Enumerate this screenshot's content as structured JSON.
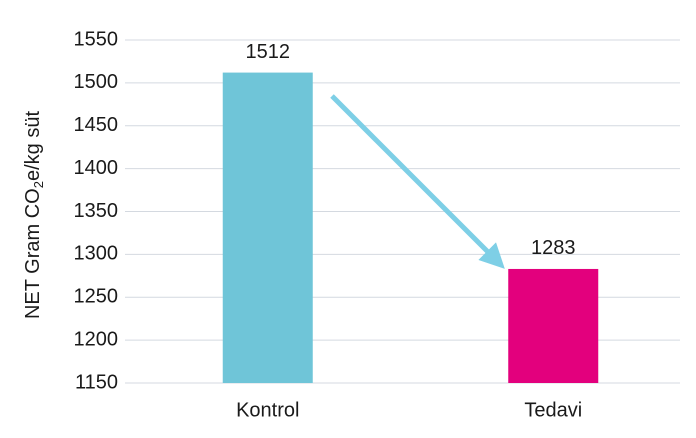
{
  "chart_data": {
    "type": "bar",
    "ylabel": [
      "NET Gram CO",
      "2",
      "e/kg süt"
    ],
    "categories": [
      "Kontrol",
      "Tedavi"
    ],
    "values": [
      1512,
      1283
    ],
    "colors": [
      "#6fc5d8",
      "#e3007d"
    ],
    "ylim": [
      1150,
      1550
    ],
    "yticks": [
      1150,
      1200,
      1250,
      1300,
      1350,
      1400,
      1450,
      1500,
      1550
    ],
    "grid": true
  }
}
